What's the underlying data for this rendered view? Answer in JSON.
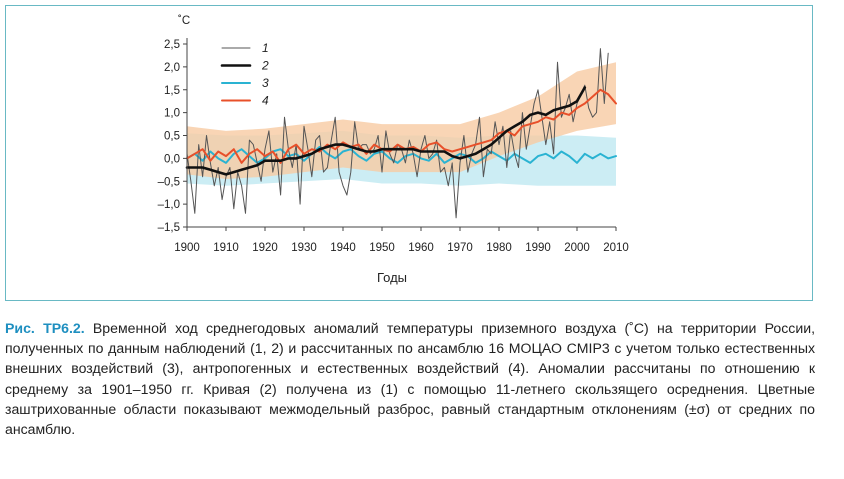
{
  "chart_data": {
    "type": "line",
    "unit_label": "˚С",
    "xlabel": "Годы",
    "ylabel": "",
    "xlim": [
      1900,
      2010
    ],
    "ylim": [
      -1.5,
      2.5
    ],
    "x_ticks": [
      1900,
      1910,
      1920,
      1930,
      1940,
      1950,
      1960,
      1970,
      1980,
      1990,
      2000,
      2010
    ],
    "x_tick_labels": [
      "1900",
      "1910",
      "1920",
      "1930",
      "1940",
      "1950",
      "1960",
      "1970",
      "1980",
      "1990",
      "2000",
      "2010"
    ],
    "y_ticks": [
      -1.5,
      -1.0,
      -0.5,
      0.0,
      0.5,
      1.0,
      1.5,
      2.0,
      2.5
    ],
    "y_tick_labels": [
      "–1,5",
      "–1,0",
      "–0,5",
      "0,0",
      "0,5",
      "1,0",
      "1,5",
      "2,0",
      "2,5"
    ],
    "grid": false,
    "legend_position": "top-left",
    "bands": [
      {
        "for_series": "3",
        "color": "#bfe9f1",
        "x": [
          1900,
          1910,
          1920,
          1930,
          1940,
          1950,
          1960,
          1970,
          1980,
          1990,
          2000,
          2010
        ],
        "lower": [
          -0.55,
          -0.6,
          -0.55,
          -0.5,
          -0.45,
          -0.55,
          -0.55,
          -0.6,
          -0.55,
          -0.6,
          -0.6,
          -0.6
        ],
        "upper": [
          0.55,
          0.5,
          0.5,
          0.55,
          0.6,
          0.5,
          0.5,
          0.45,
          0.5,
          0.5,
          0.5,
          0.45
        ]
      },
      {
        "for_series": "4",
        "color": "#f7caa2",
        "x": [
          1900,
          1910,
          1920,
          1930,
          1940,
          1950,
          1960,
          1970,
          1980,
          1990,
          2000,
          2010
        ],
        "lower": [
          -0.35,
          -0.45,
          -0.4,
          -0.3,
          -0.2,
          -0.3,
          -0.3,
          -0.3,
          0.05,
          0.35,
          0.6,
          0.75
        ],
        "upper": [
          0.7,
          0.6,
          0.65,
          0.75,
          0.85,
          0.75,
          0.75,
          0.75,
          1.0,
          1.35,
          1.9,
          2.1
        ]
      }
    ],
    "series": [
      {
        "name": "1",
        "color": "#555555",
        "width": 1,
        "x": [
          1900,
          1901,
          1902,
          1903,
          1904,
          1905,
          1906,
          1907,
          1908,
          1909,
          1910,
          1911,
          1912,
          1913,
          1914,
          1915,
          1916,
          1917,
          1918,
          1919,
          1920,
          1921,
          1922,
          1923,
          1924,
          1925,
          1926,
          1927,
          1928,
          1929,
          1930,
          1931,
          1932,
          1933,
          1934,
          1935,
          1936,
          1937,
          1938,
          1939,
          1940,
          1941,
          1942,
          1943,
          1944,
          1945,
          1946,
          1947,
          1948,
          1949,
          1950,
          1951,
          1952,
          1953,
          1954,
          1955,
          1956,
          1957,
          1958,
          1959,
          1960,
          1961,
          1962,
          1963,
          1964,
          1965,
          1966,
          1967,
          1968,
          1969,
          1970,
          1971,
          1972,
          1973,
          1974,
          1975,
          1976,
          1977,
          1978,
          1979,
          1980,
          1981,
          1982,
          1983,
          1984,
          1985,
          1986,
          1987,
          1988,
          1989,
          1990,
          1991,
          1992,
          1993,
          1994,
          1995,
          1996,
          1997,
          1998,
          1999,
          2000,
          2001,
          2002,
          2003,
          2004,
          2005,
          2006,
          2007,
          2008
        ],
        "values": [
          0.1,
          -0.5,
          -1.2,
          0.3,
          -0.4,
          0.5,
          -0.1,
          -0.6,
          -0.2,
          -0.9,
          -0.4,
          -0.2,
          -1.1,
          -0.3,
          -0.6,
          -1.2,
          0.4,
          0.3,
          -0.1,
          -0.5,
          0.2,
          0.6,
          -0.3,
          0.1,
          -0.8,
          0.9,
          0.2,
          -0.2,
          0.3,
          -1.0,
          0.7,
          0.2,
          -0.4,
          0.4,
          0.5,
          -0.3,
          -0.2,
          0.4,
          0.9,
          -0.3,
          -0.6,
          -0.8,
          -0.3,
          0.8,
          0.2,
          0.3,
          0.3,
          0.1,
          0.2,
          0.5,
          -0.3,
          0.6,
          0.1,
          -0.1,
          0.3,
          0.2,
          -0.1,
          0.4,
          0.1,
          -0.4,
          0.2,
          0.5,
          0.0,
          0.1,
          0.4,
          -0.3,
          -0.2,
          -0.6,
          -0.1,
          -1.3,
          -0.1,
          0.5,
          -0.3,
          0.1,
          0.3,
          0.9,
          -0.4,
          0.2,
          0.1,
          0.8,
          0.3,
          0.7,
          -0.2,
          0.6,
          0.1,
          -0.2,
          1.0,
          0.2,
          0.7,
          1.2,
          1.5,
          0.9,
          0.3,
          0.8,
          0.1,
          2.1,
          0.9,
          1.1,
          1.4,
          0.8,
          1.2,
          1.4,
          1.6,
          1.1,
          0.9,
          1.0,
          2.4,
          1.2,
          2.3
        ]
      },
      {
        "name": "2",
        "color": "#111111",
        "width": 2.6,
        "x": [
          1900,
          1902,
          1904,
          1906,
          1908,
          1910,
          1912,
          1914,
          1916,
          1918,
          1920,
          1922,
          1924,
          1926,
          1928,
          1930,
          1932,
          1934,
          1936,
          1938,
          1940,
          1942,
          1944,
          1946,
          1948,
          1950,
          1952,
          1954,
          1956,
          1958,
          1960,
          1962,
          1964,
          1966,
          1968,
          1970,
          1972,
          1974,
          1976,
          1978,
          1980,
          1982,
          1984,
          1986,
          1988,
          1990,
          1992,
          1994,
          1996,
          1998,
          2000,
          2002
        ],
        "values": [
          -0.2,
          -0.2,
          -0.2,
          -0.25,
          -0.3,
          -0.35,
          -0.3,
          -0.25,
          -0.2,
          -0.15,
          -0.05,
          -0.05,
          -0.05,
          0.0,
          0.0,
          0.05,
          0.1,
          0.2,
          0.25,
          0.3,
          0.3,
          0.25,
          0.2,
          0.15,
          0.15,
          0.2,
          0.2,
          0.2,
          0.2,
          0.2,
          0.15,
          0.15,
          0.15,
          0.15,
          0.05,
          0.0,
          0.05,
          0.1,
          0.2,
          0.3,
          0.45,
          0.6,
          0.7,
          0.8,
          0.95,
          1.0,
          0.95,
          1.05,
          1.1,
          1.15,
          1.25,
          1.55
        ]
      },
      {
        "name": "3",
        "color": "#2ab3d2",
        "width": 2,
        "x": [
          1900,
          1902,
          1904,
          1906,
          1908,
          1910,
          1912,
          1914,
          1916,
          1918,
          1920,
          1922,
          1924,
          1926,
          1928,
          1930,
          1932,
          1934,
          1936,
          1938,
          1940,
          1942,
          1944,
          1946,
          1948,
          1950,
          1952,
          1954,
          1956,
          1958,
          1960,
          1962,
          1964,
          1966,
          1968,
          1970,
          1972,
          1974,
          1976,
          1978,
          1980,
          1982,
          1984,
          1986,
          1988,
          1990,
          1992,
          1994,
          1996,
          1998,
          2000,
          2002,
          2004,
          2006,
          2008,
          2010
        ],
        "values": [
          0.0,
          0.1,
          -0.05,
          0.15,
          0.0,
          -0.1,
          0.1,
          0.2,
          0.05,
          -0.1,
          0.0,
          0.15,
          0.2,
          0.05,
          0.1,
          -0.05,
          0.1,
          0.25,
          0.1,
          0.0,
          0.15,
          0.2,
          0.05,
          -0.05,
          0.1,
          0.15,
          0.0,
          -0.1,
          0.05,
          0.1,
          0.0,
          -0.05,
          0.1,
          -0.1,
          0.0,
          0.1,
          0.05,
          -0.1,
          0.0,
          0.15,
          0.05,
          -0.05,
          0.1,
          0.0,
          -0.1,
          0.05,
          0.1,
          0.0,
          0.15,
          0.05,
          -0.1,
          0.1,
          0.0,
          0.1,
          0.0,
          0.05
        ]
      },
      {
        "name": "4",
        "color": "#e8502a",
        "width": 2,
        "x": [
          1900,
          1902,
          1904,
          1906,
          1908,
          1910,
          1912,
          1914,
          1916,
          1918,
          1920,
          1922,
          1924,
          1926,
          1928,
          1930,
          1932,
          1934,
          1936,
          1938,
          1940,
          1942,
          1944,
          1946,
          1948,
          1950,
          1952,
          1954,
          1956,
          1958,
          1960,
          1962,
          1964,
          1966,
          1968,
          1970,
          1972,
          1974,
          1976,
          1978,
          1980,
          1982,
          1984,
          1986,
          1988,
          1990,
          1992,
          1994,
          1996,
          1998,
          2000,
          2002,
          2004,
          2006,
          2008,
          2010
        ],
        "values": [
          0.0,
          0.1,
          0.2,
          -0.05,
          0.15,
          0.05,
          0.2,
          -0.1,
          0.1,
          0.2,
          0.05,
          0.15,
          -0.1,
          0.2,
          0.3,
          0.1,
          0.2,
          0.15,
          0.3,
          0.2,
          0.35,
          0.25,
          0.3,
          0.1,
          0.3,
          0.2,
          0.15,
          0.3,
          0.2,
          0.25,
          0.15,
          0.3,
          0.35,
          0.2,
          0.15,
          0.2,
          0.25,
          0.3,
          0.35,
          0.4,
          0.55,
          0.6,
          0.5,
          0.7,
          0.75,
          0.8,
          0.9,
          0.85,
          1.0,
          0.95,
          1.1,
          1.2,
          1.35,
          1.5,
          1.4,
          1.2
        ]
      }
    ]
  },
  "caption": {
    "label": "Рис. ТР6.2.",
    "text": " Временной ход среднегодовых аномалий температуры приземного воздуха (˚С) на территории России, полученных по данным наблюдений (1, 2) и рассчитанных по ансамблю 16 МОЦАО CMIP3 с учетом только естественных внешних воздействий (3), антропогенных и естественных воздействий (4). Аномалии рассчитаны по отношению к среднему за 1901–1950 гг. Кривая (2) получена из (1) с помощью 11-летнего скользящего осреднения. Цветные заштрихованные области показывают межмодельный разброс, равный стандартным отклонениям (±σ) от средних по ансамблю."
  }
}
